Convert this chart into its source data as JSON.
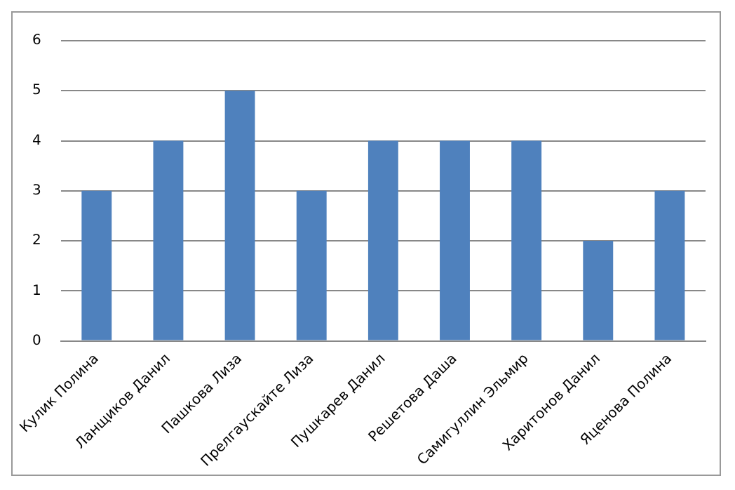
{
  "chart_data": {
    "type": "bar",
    "categories": [
      "Кулик Полина",
      "Ланщиков Данил",
      "Пашкова Лиза",
      "Прелгаускайте Лиза",
      "Пушкарев Данил",
      "Решетова Даша",
      "Самигуллин Эльмир",
      "Харитонов Данил",
      "Яценова Полина"
    ],
    "values": [
      3,
      4,
      5,
      3,
      4,
      4,
      4,
      2,
      3
    ],
    "color": "#4f81bd",
    "ylim": [
      0,
      6
    ],
    "yticks": [
      0,
      1,
      2,
      3,
      4,
      5,
      6
    ],
    "grid": "y",
    "legend": false
  }
}
